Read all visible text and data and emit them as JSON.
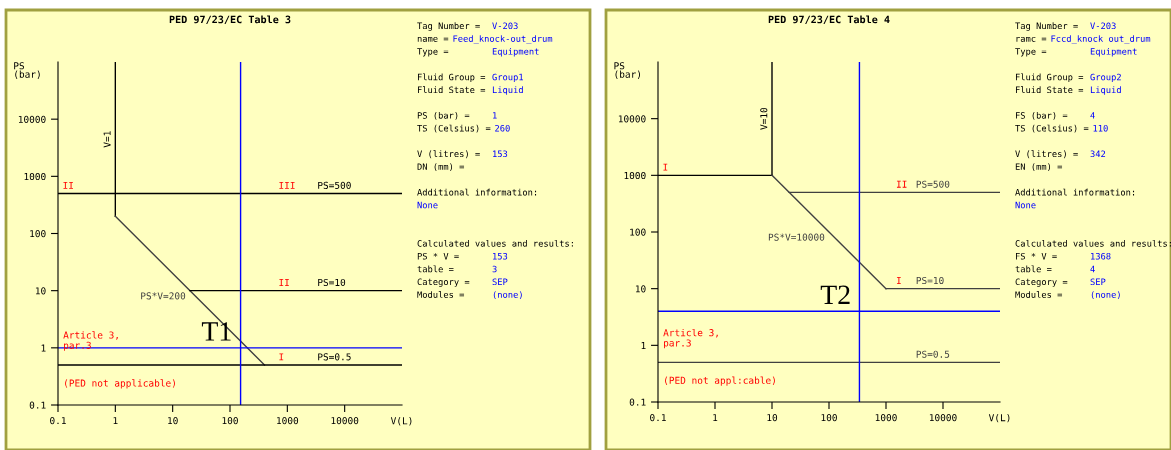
{
  "chart_data": [
    {
      "type": "line",
      "title": "PED 97/23/EC Table 3",
      "xlabel": "V(L)",
      "ylabel": "PS\n(bar)",
      "log": "xy",
      "grid": false,
      "marker": "none",
      "line_style": "solid",
      "xlim": [
        0.1,
        100000
      ],
      "ylim": [
        0.1,
        100000
      ],
      "xticks": [
        0.1,
        1,
        10,
        100,
        1000,
        10000
      ],
      "yticks": [
        0.1,
        1,
        10,
        100,
        1000,
        10000
      ],
      "series": [
        {
          "name": "PS=500",
          "color": "#000000",
          "x": [
            0.1,
            100000
          ],
          "values": [
            500,
            500
          ]
        },
        {
          "name": "V=1",
          "color": "#000000",
          "x": [
            1,
            1
          ],
          "values": [
            200,
            100000
          ]
        },
        {
          "name": "PS*V=200",
          "color": "#404040",
          "x": [
            1,
            400
          ],
          "values": [
            200,
            0.5
          ]
        },
        {
          "name": "PS=10",
          "color": "#000000",
          "x": [
            20,
            100000
          ],
          "values": [
            10,
            10
          ]
        },
        {
          "name": "PS=0.5",
          "color": "#000000",
          "x": [
            0.1,
            100000
          ],
          "values": [
            0.5,
            0.5
          ]
        }
      ],
      "ref_lines": [
        {
          "axis": "x",
          "value": 153,
          "color": "#0000ff",
          "label": "T1"
        },
        {
          "axis": "y",
          "value": 1,
          "color": "#0000ff"
        }
      ],
      "annotations": [
        {
          "text": "II",
          "x": 0.12,
          "y": 500
        },
        {
          "text": "III",
          "x": 700,
          "y": 500
        },
        {
          "text": "II",
          "x": 700,
          "y": 10
        },
        {
          "text": "I",
          "x": 700,
          "y": 0.5
        },
        "Article 3,\npar.3",
        "(PED not applicable)"
      ]
    },
    {
      "type": "other",
      "categories": [
        "Tag Number =",
        "name =",
        "Type =",
        null,
        "Fluid Group =",
        "Fluid State =",
        null,
        "PS (bar) =",
        "TS (Celsius) =",
        null,
        "V (litres) =",
        "DN (mm) =",
        null,
        null,
        null,
        null,
        null,
        null,
        "PS * V =",
        "table =",
        "Category =",
        "Modules ="
      ],
      "value_labels": [
        "V-203",
        "Feed_knock-out_drum",
        "Equipment",
        null,
        "Group1",
        "Liquid",
        null,
        "1",
        "260",
        null,
        "153",
        null,
        null,
        null,
        "None",
        null,
        null,
        null,
        "153",
        "3",
        "SEP",
        "(none)"
      ],
      "annotations": [
        "Additional information:",
        "Calculated values and results:"
      ]
    },
    {
      "type": "line",
      "title": "PED 97/23/EC Table 4",
      "xlabel": "V(L)",
      "ylabel": "PS\n(bar)",
      "log": "xy",
      "grid": false,
      "marker": "none",
      "line_style": "solid",
      "xlim": [
        0.1,
        100000
      ],
      "ylim": [
        0.1,
        100000
      ],
      "xticks": [
        0.1,
        1,
        10,
        100,
        1000,
        10000
      ],
      "yticks": [
        0.1,
        1,
        10,
        100,
        1000,
        10000
      ],
      "series": [
        {
          "color": "#000000",
          "x": [
            0.1,
            10
          ],
          "values": [
            1000,
            1000
          ]
        },
        {
          "name": "V=10",
          "color": "#000000",
          "x": [
            10,
            10
          ],
          "values": [
            1000,
            100000
          ]
        },
        {
          "name": "PS*V=10000",
          "color": "#404040",
          "x": [
            10,
            1000
          ],
          "values": [
            1000,
            10
          ]
        },
        {
          "name": "PS=500",
          "color": "#404040",
          "x": [
            20,
            100000
          ],
          "values": [
            500,
            500
          ]
        },
        {
          "name": "PS=10",
          "color": "#404040",
          "x": [
            1000,
            100000
          ],
          "values": [
            10,
            10
          ]
        },
        {
          "name": "PS=0.5",
          "color": "#404040",
          "x": [
            0.1,
            100000
          ],
          "values": [
            0.5,
            0.5
          ]
        }
      ],
      "ref_lines": [
        {
          "axis": "x",
          "value": 342,
          "color": "#0000ff",
          "label": "T2"
        },
        {
          "axis": "y",
          "value": 4,
          "color": "#0000ff"
        }
      ],
      "annotations": [
        {
          "text": "I",
          "x": 0.12,
          "y": 1000
        },
        {
          "text": "II",
          "x": 1500,
          "y": 500
        },
        {
          "text": "I",
          "x": 1500,
          "y": 10
        },
        "Article 3,\npar.3",
        "(PED not appl:cable)"
      ]
    },
    {
      "type": "other",
      "categories": [
        "Tag Number =",
        "ramc =",
        "Type =",
        null,
        "Fluid Group =",
        "Fluid State =",
        null,
        "FS (bar) =",
        "TS (Celsius) =",
        null,
        "V (litres) =",
        "EN (mm) =",
        null,
        null,
        null,
        null,
        null,
        null,
        "FS * V =",
        "table =",
        "Category =",
        "Modules ="
      ],
      "value_labels": [
        "V-203",
        "Fccd_knock out_drum",
        "Equipment",
        null,
        "Group2",
        "Liquid",
        null,
        "4",
        "110",
        null,
        "342",
        null,
        null,
        null,
        "None",
        null,
        null,
        null,
        "1368",
        "4",
        "SEP",
        "(none)"
      ],
      "annotations": [
        "Additional information:",
        "Calculated values and results:"
      ]
    }
  ]
}
